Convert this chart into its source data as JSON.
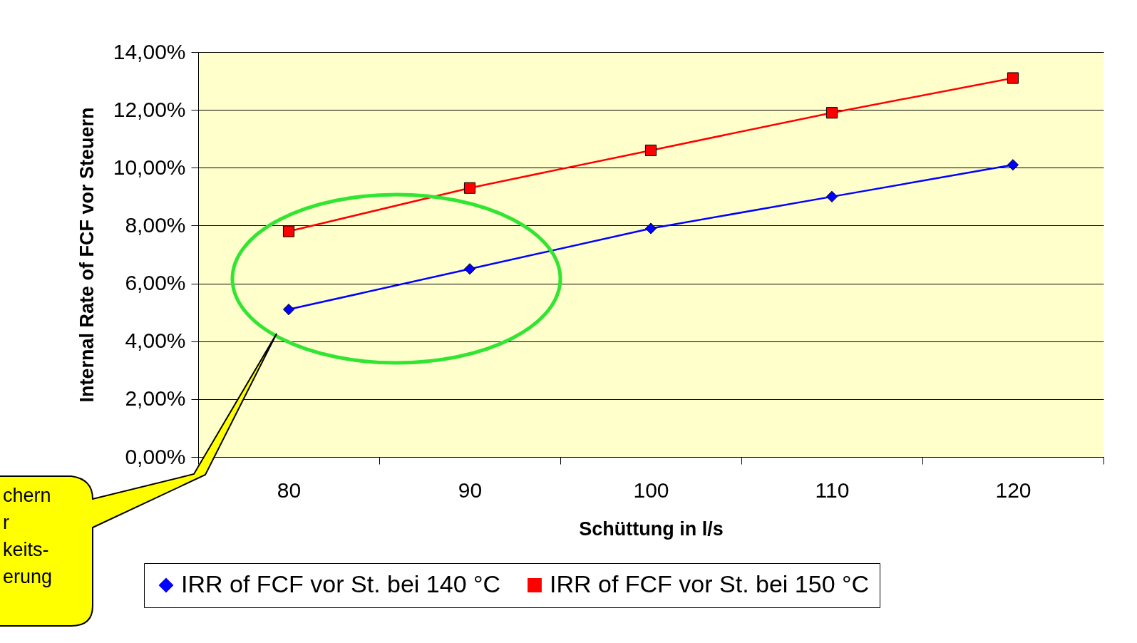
{
  "chart_data": {
    "type": "line",
    "xlabel": "Schüttung in l/s",
    "ylabel": "Internal Rate of FCF vor Steuern",
    "categories": [
      "80",
      "90",
      "100",
      "110",
      "120"
    ],
    "series": [
      {
        "name": "IRR of FCF vor St. bei 140 °C",
        "color": "#0000ff",
        "marker": "diamond",
        "values": [
          5.1,
          6.5,
          7.9,
          9.0,
          10.1
        ]
      },
      {
        "name": "IRR of FCF vor St. bei 150 °C",
        "color": "#ff0000",
        "marker": "square",
        "values": [
          7.8,
          9.3,
          10.6,
          11.9,
          13.1
        ]
      }
    ],
    "ylim": [
      0,
      14
    ],
    "yticks": [
      {
        "value": 0,
        "label": "0,00%"
      },
      {
        "value": 2,
        "label": "2,00%"
      },
      {
        "value": 4,
        "label": "4,00%"
      },
      {
        "value": 6,
        "label": "6,00%"
      },
      {
        "value": 8,
        "label": "8,00%"
      },
      {
        "value": 10,
        "label": "10,00%"
      },
      {
        "value": 12,
        "label": "12,00%"
      },
      {
        "value": 14,
        "label": "14,00%"
      }
    ],
    "grid": "y",
    "legend": "bottom",
    "line_style": "solid",
    "annotations": [
      "chern\nr\nkeits-\nerung"
    ]
  }
}
